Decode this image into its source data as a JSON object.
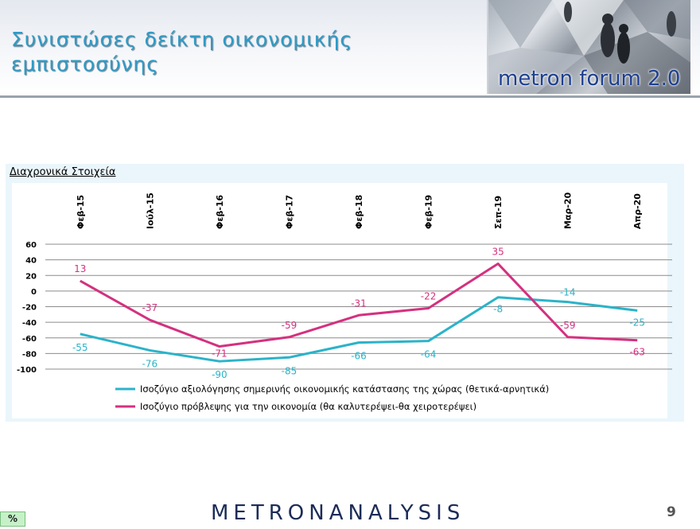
{
  "header": {
    "title_line1": "Συνιστώσες δείκτη οικονομικής",
    "title_line2": "εμπιστοσύνης",
    "banner_text": "metron forum 2.0"
  },
  "section_label": "Διαχρονικά Στοιχεία",
  "footer": {
    "logo_text": "METRONANALYSIS",
    "page_number": "9",
    "percent_badge": "%"
  },
  "colors": {
    "title": "#2e9bc6",
    "series_current": "#2bb3c9",
    "series_forecast": "#d4317f"
  },
  "chart_data": {
    "type": "line",
    "categories": [
      "Φεβ-15",
      "Ιούλ-15",
      "Φεβ-16",
      "Φεβ-17",
      "Φεβ-18",
      "Φεβ-19",
      "Σεπ-19",
      "Μαρ-20",
      "Απρ-20"
    ],
    "series": [
      {
        "name": "Ισοζύγιο αξιολόγησης σημερινής οικονομικής κατάστασης της χώρας (θετικά-αρνητικά)",
        "color": "#2bb3c9",
        "values": [
          -55,
          -76,
          -90,
          -85,
          -66,
          -64,
          -8,
          -14,
          -25
        ]
      },
      {
        "name": "Ισοζύγιο πρόβλεψης για την οικονομία (θα καλυτερέψει-θα χειροτερέψει)",
        "color": "#d4317f",
        "values": [
          13,
          -37,
          -71,
          -59,
          -31,
          -22,
          35,
          -59,
          -63
        ]
      }
    ],
    "ylim": [
      -100,
      60
    ],
    "yticks": [
      60,
      40,
      20,
      0,
      -20,
      -40,
      -60,
      -80,
      -100
    ],
    "grid": true,
    "legend_position": "bottom",
    "category_axis_position": "top"
  }
}
